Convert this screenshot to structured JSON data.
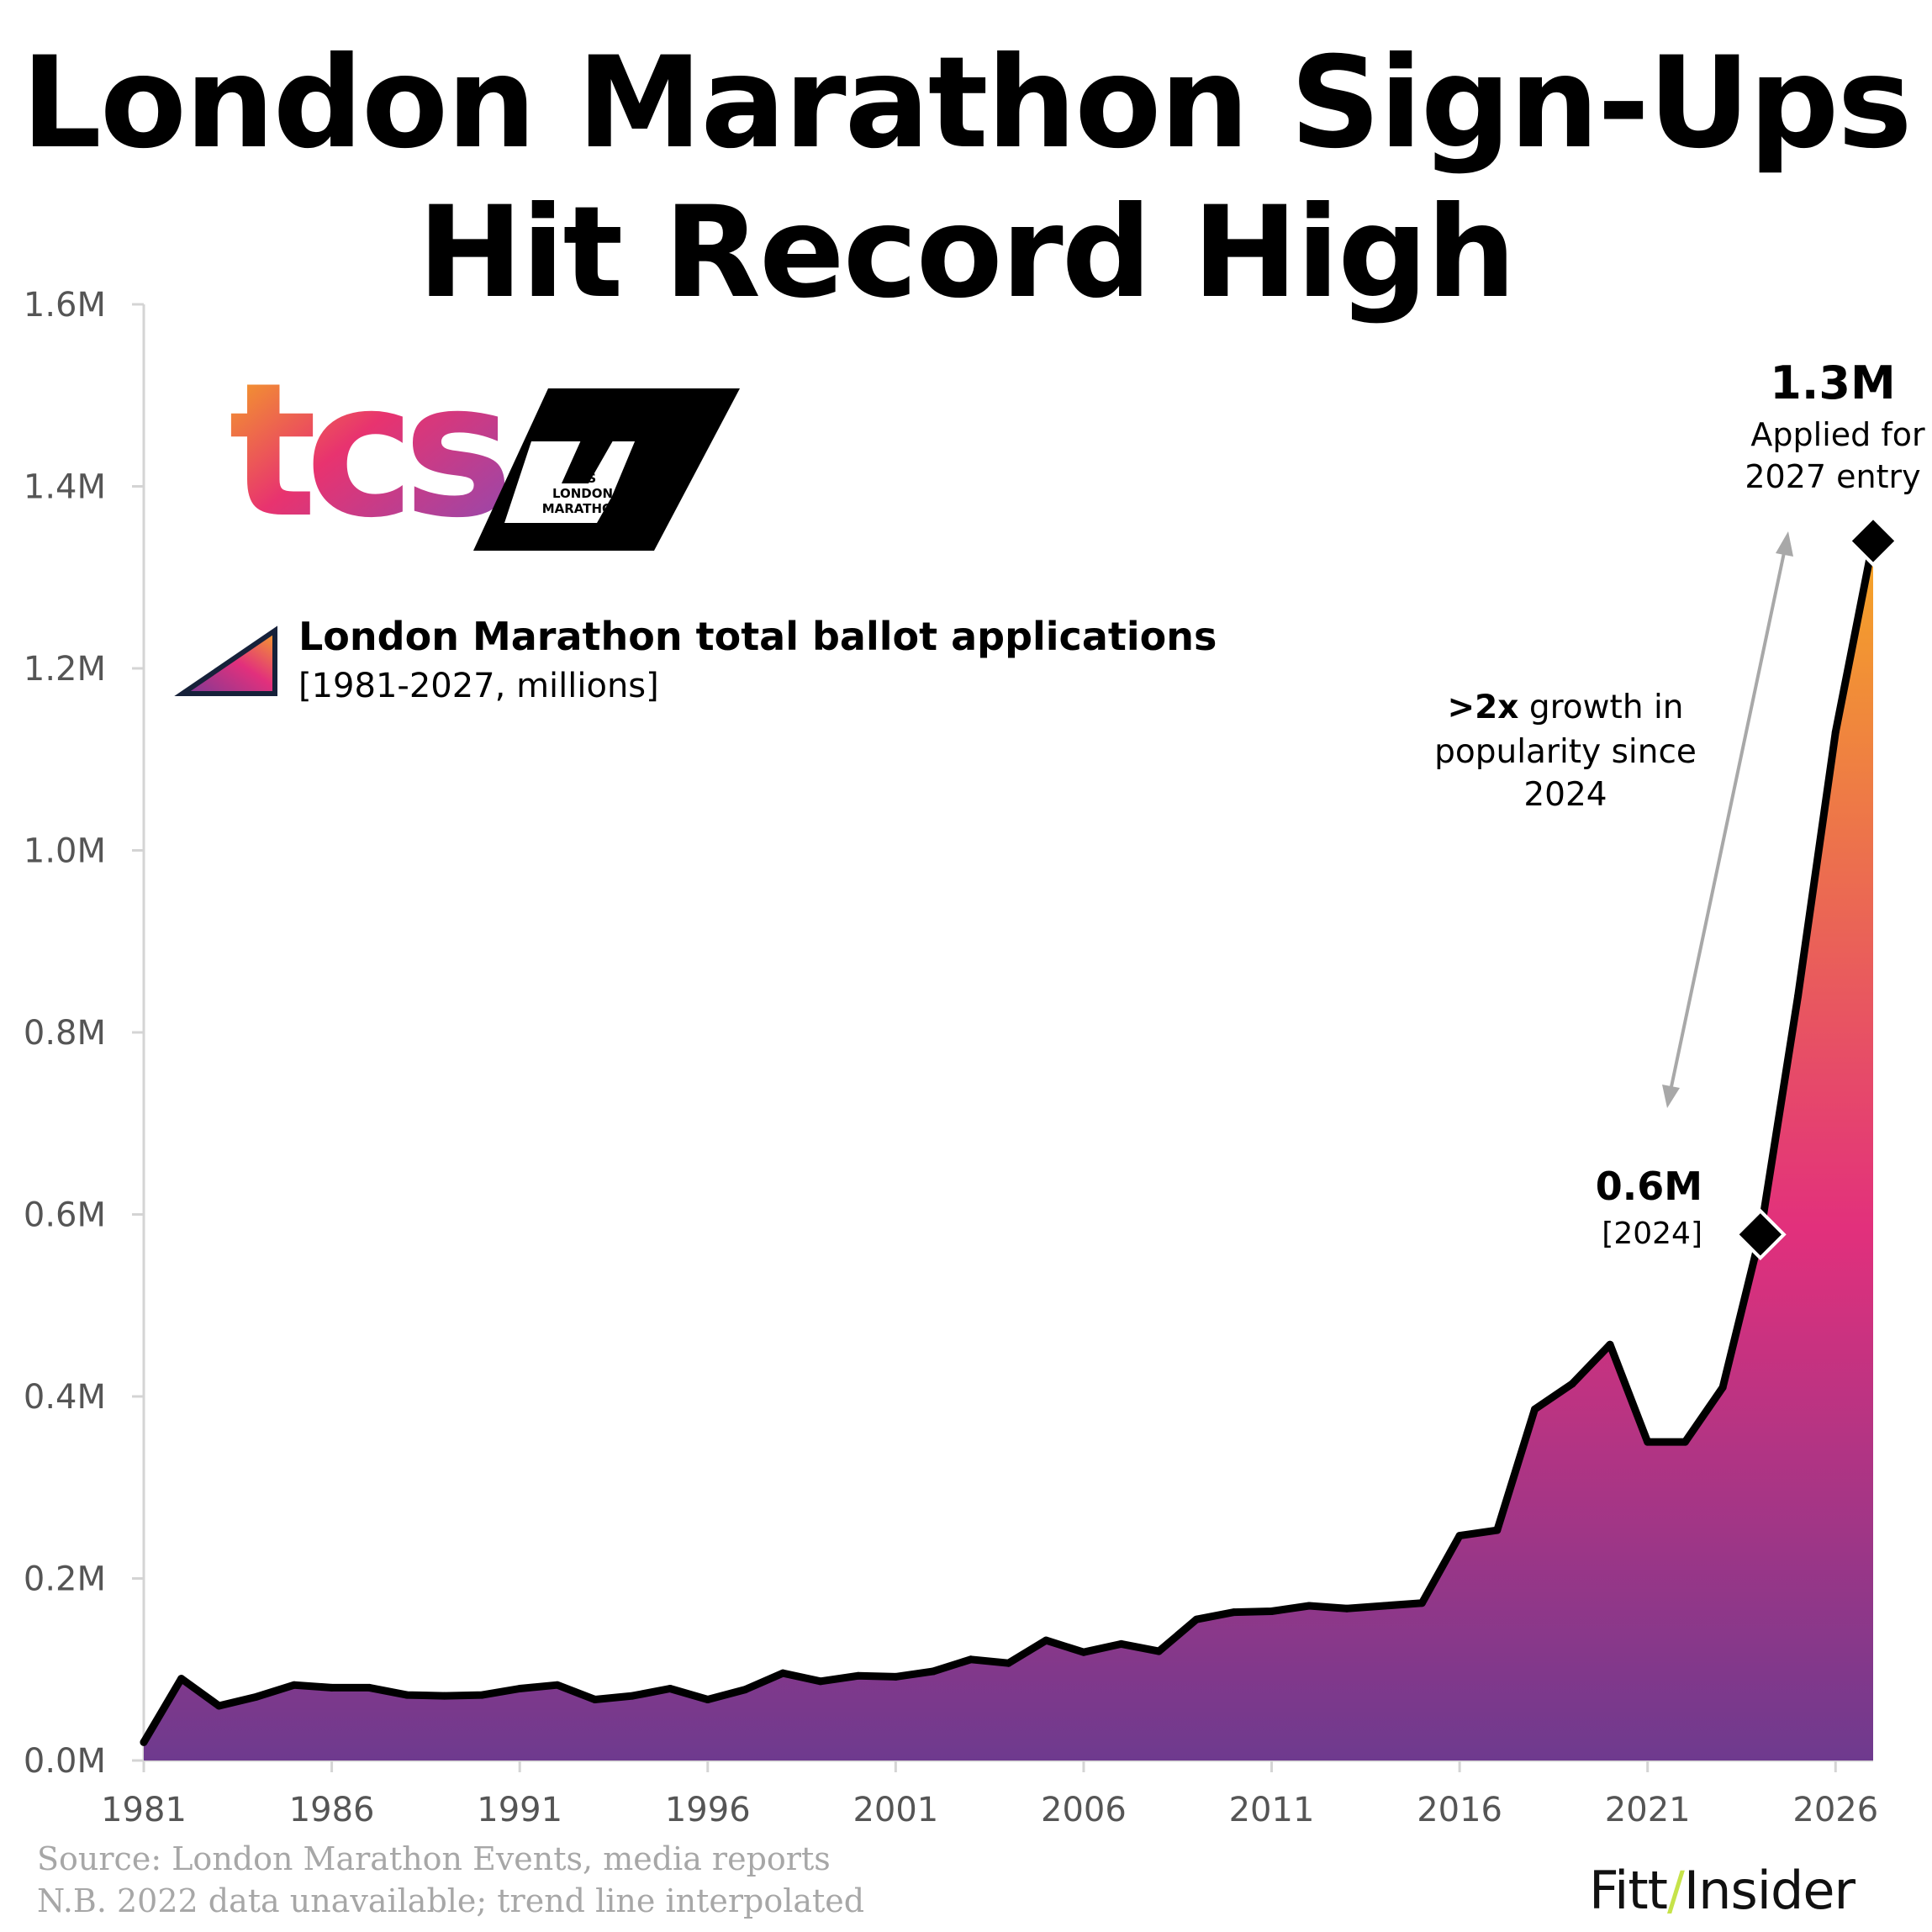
{
  "title": {
    "line1": "London Marathon Sign-Ups",
    "line2": "Hit Record High"
  },
  "legend": {
    "title": "London Marathon total ballot applications",
    "subtitle": "[1981-2027, millions]"
  },
  "logos": {
    "tcs_text": "tcs",
    "london_marathon_lines": [
      "TCS",
      "LONDON",
      "MARATHON"
    ]
  },
  "annotations": {
    "peak_value": "1.3M",
    "peak_line1": "Applied for",
    "peak_line2": "2027 entry",
    "mid_value": "0.6M",
    "mid_year": "[2024]",
    "growth_bold": ">2x",
    "growth_rest": " growth in",
    "growth_line2": "popularity since",
    "growth_line3": "2024"
  },
  "footer": {
    "source": "Source: London Marathon Events, media reports",
    "note": "N.B. 2022 data unavailable; trend line interpolated",
    "brand_left": "Fitt",
    "brand_slash": "/",
    "brand_right": "Insider"
  },
  "colors": {
    "gradient_top": "#f4a02a",
    "gradient_mid": "#e2307c",
    "gradient_bottom": "#6e3a8e",
    "line": "#000000",
    "arrow": "#a8a8a8",
    "axis_text": "#555555"
  },
  "chart_data": {
    "type": "area",
    "title": "London Marathon total ballot applications",
    "subtitle": "[1981-2027, millions]",
    "xlabel": "",
    "ylabel": "",
    "xlim": [
      1981,
      2027
    ],
    "ylim": [
      0,
      1.6
    ],
    "x_ticks": [
      1981,
      1986,
      1991,
      1996,
      2001,
      2006,
      2011,
      2016,
      2021,
      2026
    ],
    "y_ticks": [
      0.0,
      0.2,
      0.4,
      0.6,
      0.8,
      1.0,
      1.2,
      1.4,
      1.6
    ],
    "y_tick_labels": [
      "0.0M",
      "0.2M",
      "0.4M",
      "0.6M",
      "0.8M",
      "1.0M",
      "1.2M",
      "1.4M",
      "1.6M"
    ],
    "grid": false,
    "series": [
      {
        "x": [
          1981,
          1982,
          1983,
          1984,
          1985,
          1986,
          1987,
          1988,
          1989,
          1990,
          1991,
          1992,
          1993,
          1994,
          1995,
          1996,
          1997,
          1998,
          1999,
          2000,
          2001,
          2002,
          2003,
          2004,
          2005,
          2006,
          2007,
          2008,
          2009,
          2010,
          2011,
          2012,
          2013,
          2014,
          2015,
          2016,
          2017,
          2018,
          2019,
          2020,
          2021,
          2022,
          2023,
          2024,
          2025,
          2026,
          2027
        ],
        "values": [
          0.02,
          0.09,
          0.06,
          0.07,
          0.083,
          0.08,
          0.08,
          0.072,
          0.071,
          0.072,
          0.079,
          0.083,
          0.067,
          0.071,
          0.079,
          0.067,
          0.078,
          0.096,
          0.087,
          0.093,
          0.092,
          0.098,
          0.111,
          0.107,
          0.132,
          0.119,
          0.128,
          0.12,
          0.155,
          0.163,
          0.164,
          0.17,
          0.167,
          0.17,
          0.173,
          0.247,
          0.253,
          0.386,
          0.414,
          0.457,
          0.35,
          0.35,
          0.41,
          0.578,
          0.84,
          1.13,
          1.34
        ]
      }
    ],
    "markers": [
      {
        "x": 2024,
        "y": 0.578
      },
      {
        "x": 2027,
        "y": 1.34
      }
    ]
  }
}
